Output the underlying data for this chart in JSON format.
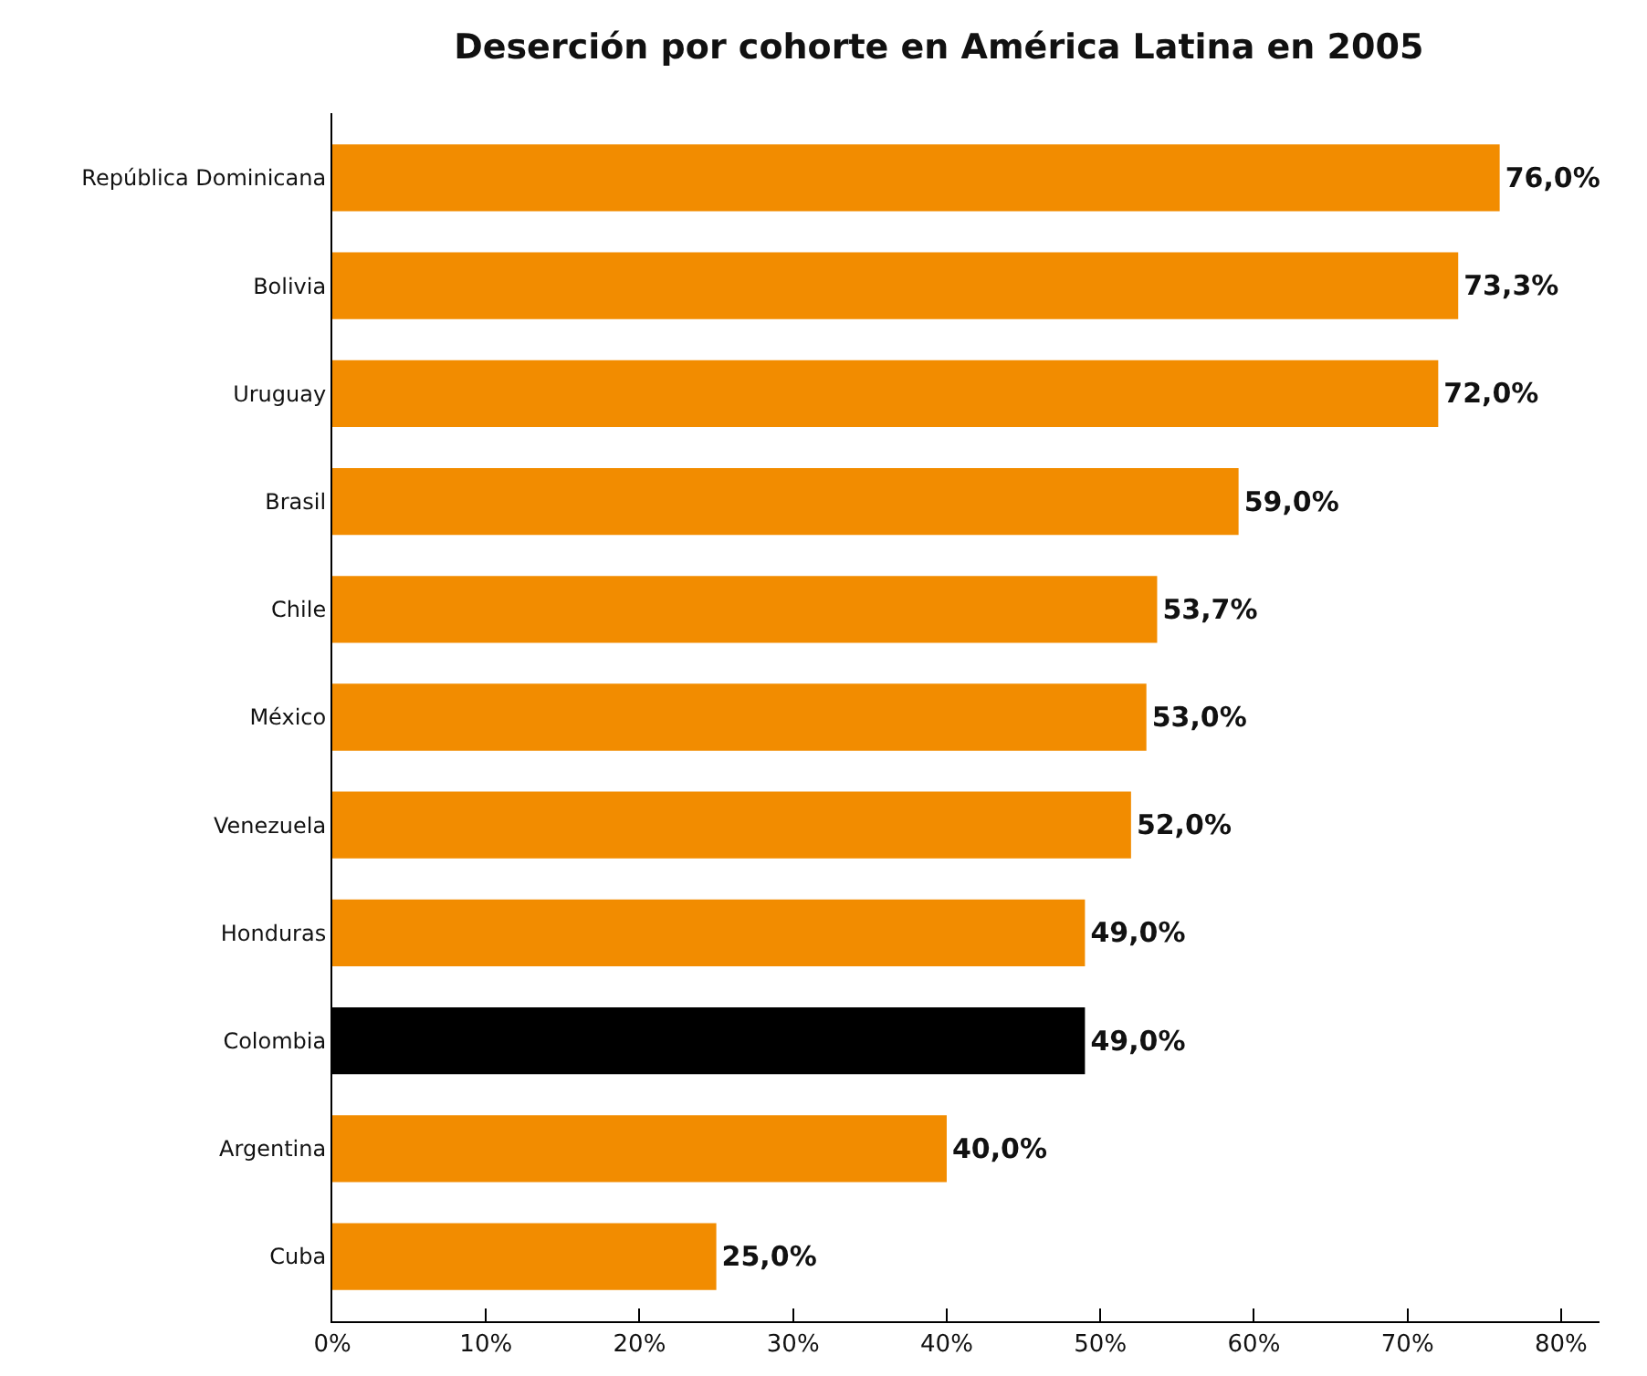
{
  "chart_data": {
    "type": "bar",
    "orientation": "horizontal",
    "title": "Deserción por cohorte en América Latina en 2005",
    "categories": [
      "República Dominicana",
      "Bolivia",
      "Uruguay",
      "Brasil",
      "Chile",
      "México",
      "Venezuela",
      "Honduras",
      "Colombia",
      "Argentina",
      "Cuba"
    ],
    "values": [
      76.0,
      73.3,
      72.0,
      59.0,
      53.7,
      53.0,
      52.0,
      49.0,
      49.0,
      40.0,
      25.0
    ],
    "colors": [
      "#f28c00",
      "#f28c00",
      "#f28c00",
      "#f28c00",
      "#f28c00",
      "#f28c00",
      "#f28c00",
      "#f28c00",
      "#000000",
      "#f28c00",
      "#f28c00"
    ],
    "value_labels": [
      "76,0%",
      "73,3%",
      "72,0%",
      "59,0%",
      "53,7%",
      "53,0%",
      "52,0%",
      "49,0%",
      "49,0%",
      "40,0%",
      "25,0%"
    ],
    "xlim": [
      0,
      82.5
    ],
    "xticks": [
      {
        "value": 0,
        "label": "0%"
      },
      {
        "value": 10,
        "label": "10%"
      },
      {
        "value": 20,
        "label": "20%"
      },
      {
        "value": 30,
        "label": "30%"
      },
      {
        "value": 40,
        "label": "40%"
      },
      {
        "value": 50,
        "label": "50%"
      },
      {
        "value": 60,
        "label": "60%"
      },
      {
        "value": 70,
        "label": "70%"
      },
      {
        "value": 80,
        "label": "80%"
      }
    ]
  }
}
